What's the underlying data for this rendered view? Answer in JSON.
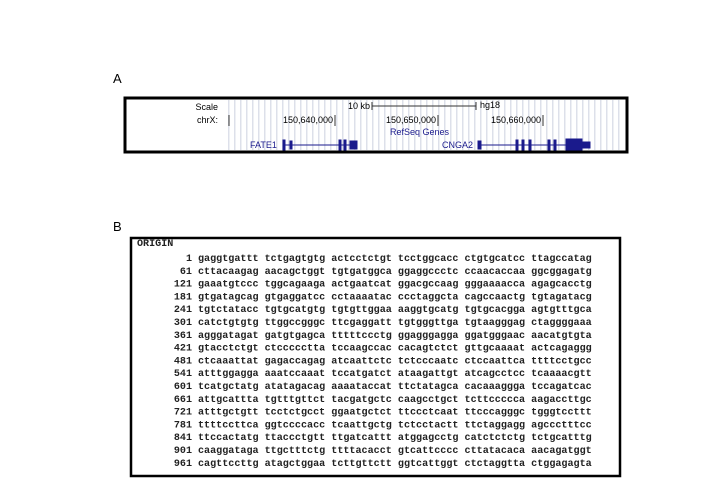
{
  "panel_a": {
    "label": "A",
    "scale_label": "Scale",
    "scale_bar": "10 kb",
    "assembly": "hg18",
    "chrom": "chrX:",
    "positions": [
      "150,640,000",
      "150,650,000",
      "150,660,000"
    ],
    "track": "RefSeq Genes",
    "genes": [
      "FATE1",
      "CNGA2"
    ]
  },
  "panel_b": {
    "label": "B",
    "header": "ORIGIN",
    "lines": [
      {
        "start": 1,
        "seq": "gaggtgattt tctgagtgtg actcctctgt tcctggcacc ctgtgcatcc ttagccatag"
      },
      {
        "start": 61,
        "seq": "cttacaagag aacagctggt tgtgatggca ggaggccctc ccaacaccaa ggcggagatg"
      },
      {
        "start": 121,
        "seq": "gaaatgtccc tggcagaaga actgaatcat ggacgccaag gggaaaacca agagcacctg"
      },
      {
        "start": 181,
        "seq": "gtgatagcag gtgaggatcc cctaaaatac ccctaggcta cagccaactg tgtagatacg"
      },
      {
        "start": 241,
        "seq": "tgtctatacc tgtgcatgtg tgtgttggaa aaggtgcatg tgtgcacgga agtgtttgca"
      },
      {
        "start": 301,
        "seq": "catctgtgtg ttggccgggc ttcgaggatt tgtgggttga tgtaagggag ctaggggaaa"
      },
      {
        "start": 361,
        "seq": "agggatagat gatgtgagca tttttccctg ggagggagga ggatgggaac aacatgtgta"
      },
      {
        "start": 421,
        "seq": "gtacctctgt ctccccctta tccaagccac cacagtctct gttgcaaaat actcagaggg"
      },
      {
        "start": 481,
        "seq": "ctcaaattat gagaccagag atcaattctc tctcccaatc ctccaattca ttttcctgcc"
      },
      {
        "start": 541,
        "seq": "atttggagga aaatccaaat tccatgatct ataagattgt atcagcctcc tcaaaacgtt"
      },
      {
        "start": 601,
        "seq": "tcatgctatg atatagacag aaaataccat ttctatagca cacaaaggga tccagatcac"
      },
      {
        "start": 661,
        "seq": "attgcattta tgtttgttct tacgatgctc caagcctgct tcttccccca aagaccttgc"
      },
      {
        "start": 721,
        "seq": "atttgctgtt tcctctgcct ggaatgctct ttccctcaat ttcccagggc tgggtccttt"
      },
      {
        "start": 781,
        "seq": "ttttccttca ggtccccacc tcaattgctg tctcctactt ttctaggagg agccctttcc"
      },
      {
        "start": 841,
        "seq": "ttccactatg ttaccctgtt ttgatcattt atggagcctg catctctctg tctgcatttg"
      },
      {
        "start": 901,
        "seq": "caaggataga ttgctttctg ttttacacct gtcattcccc cttatacaca aacagatggt"
      },
      {
        "start": 961,
        "seq": "cagttccttg atagctggaa tcttgttctt ggtcattggt ctctaggtta ctggagagta"
      }
    ]
  }
}
